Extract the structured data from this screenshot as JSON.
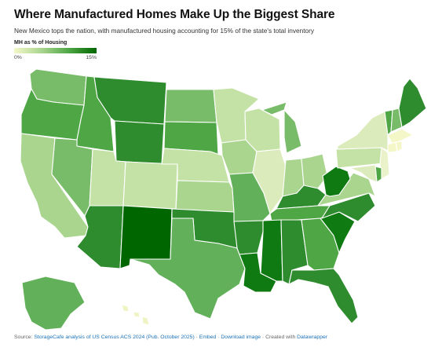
{
  "title": "Where Manufactured Homes Make Up the Biggest Share",
  "subtitle": "New Mexico tops the nation, with manufactured housing accounting for 15% of the state's total inventory",
  "legend": {
    "title": "MH as % of Housing",
    "min_label": "0%",
    "max_label": "15%",
    "colors": [
      "#f4f7c8",
      "#a9d58f",
      "#4ea645",
      "#006600"
    ]
  },
  "footer": {
    "source_label": "Source:",
    "source_link": "StorageCafe analysis of US Census ACS 2024 (Pub. October 2025)",
    "sep1": "·",
    "embed": "Embed",
    "sep2": "·",
    "download": "Download image",
    "sep3": "·",
    "created": "Created with",
    "datawrapper": "Datawrapper"
  },
  "states": [
    {
      "id": "WA",
      "color": "#78bb69"
    },
    {
      "id": "OR",
      "color": "#4ea645"
    },
    {
      "id": "CA",
      "color": "#a9d58f"
    },
    {
      "id": "ID",
      "color": "#4ea645"
    },
    {
      "id": "NV",
      "color": "#78bb69"
    },
    {
      "id": "MT",
      "color": "#2e8b2e"
    },
    {
      "id": "WY",
      "color": "#2e8b2e"
    },
    {
      "id": "UT",
      "color": "#c5e2a6"
    },
    {
      "id": "AZ",
      "color": "#2e8b2e"
    },
    {
      "id": "CO",
      "color": "#c5e2a6"
    },
    {
      "id": "NM",
      "color": "#006600"
    },
    {
      "id": "ND",
      "color": "#78bb69"
    },
    {
      "id": "SD",
      "color": "#4ea645"
    },
    {
      "id": "NE",
      "color": "#c5e2a6"
    },
    {
      "id": "KS",
      "color": "#a9d58f"
    },
    {
      "id": "OK",
      "color": "#2e8b2e"
    },
    {
      "id": "TX",
      "color": "#62b05a"
    },
    {
      "id": "MN",
      "color": "#c5e2a6"
    },
    {
      "id": "IA",
      "color": "#a9d58f"
    },
    {
      "id": "MO",
      "color": "#62b05a"
    },
    {
      "id": "AR",
      "color": "#2e8b2e"
    },
    {
      "id": "LA",
      "color": "#0f7a12"
    },
    {
      "id": "WI",
      "color": "#c5e2a6"
    },
    {
      "id": "IL",
      "color": "#dcebbb"
    },
    {
      "id": "MI",
      "color": "#78bb69"
    },
    {
      "id": "IN",
      "color": "#a9d58f"
    },
    {
      "id": "OH",
      "color": "#a9d58f"
    },
    {
      "id": "KY",
      "color": "#2e8b2e"
    },
    {
      "id": "TN",
      "color": "#4ea645"
    },
    {
      "id": "MS",
      "color": "#0f7a12"
    },
    {
      "id": "AL",
      "color": "#2e8b2e"
    },
    {
      "id": "GA",
      "color": "#4ea645"
    },
    {
      "id": "FL",
      "color": "#2e8b2e"
    },
    {
      "id": "SC",
      "color": "#0f7a12"
    },
    {
      "id": "NC",
      "color": "#2e8b2e"
    },
    {
      "id": "VA",
      "color": "#a9d58f"
    },
    {
      "id": "WV",
      "color": "#0f7a12"
    },
    {
      "id": "PA",
      "color": "#c5e2a6"
    },
    {
      "id": "NY",
      "color": "#dcebbb"
    },
    {
      "id": "VT",
      "color": "#4ea645"
    },
    {
      "id": "NH",
      "color": "#78bb69"
    },
    {
      "id": "ME",
      "color": "#2e8b2e"
    },
    {
      "id": "MA",
      "color": "#f4f7c8"
    },
    {
      "id": "CT",
      "color": "#f4f7c8"
    },
    {
      "id": "RI",
      "color": "#f4f7c8"
    },
    {
      "id": "NJ",
      "color": "#e9f2c8"
    },
    {
      "id": "DE",
      "color": "#4ea645"
    },
    {
      "id": "MD",
      "color": "#dcebbb"
    },
    {
      "id": "AK",
      "color": "#62b05a"
    },
    {
      "id": "HI",
      "color": "#f0f4c4"
    }
  ]
}
